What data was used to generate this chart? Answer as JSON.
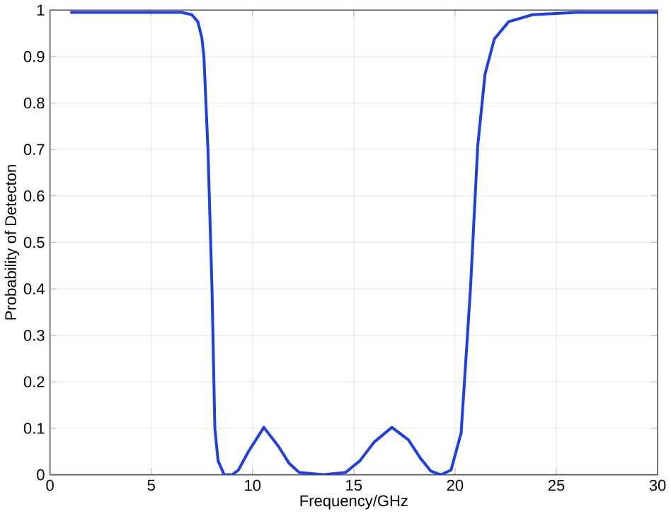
{
  "chart_data": {
    "type": "line",
    "xlabel": "Frequency/GHz",
    "ylabel": "Probability of Detecton",
    "xlim": [
      0,
      30
    ],
    "ylim": [
      0,
      1
    ],
    "xticks": [
      0,
      5,
      10,
      15,
      20,
      25,
      30
    ],
    "yticks": [
      0,
      0.1,
      0.2,
      0.3,
      0.4,
      0.5,
      0.6,
      0.7,
      0.8,
      0.9,
      1
    ],
    "grid": true,
    "series": [
      {
        "color": "#1f3fe6",
        "x": [
          1.0,
          6.5,
          7.0,
          7.3,
          7.5,
          7.6,
          7.8,
          8.0,
          8.14,
          8.3,
          8.6,
          9.0,
          9.3,
          9.8,
          10.56,
          11.3,
          11.8,
          12.3,
          13.5,
          14.6,
          15.3,
          16.0,
          16.88,
          17.7,
          18.3,
          18.8,
          19.3,
          19.8,
          20.3,
          20.76,
          21.12,
          21.48,
          21.94,
          22.65,
          23.83,
          26.0,
          30.0
        ],
        "values": [
          0.995,
          0.995,
          0.99,
          0.975,
          0.94,
          0.9,
          0.7,
          0.4,
          0.1,
          0.03,
          0.0,
          0.0,
          0.01,
          0.05,
          0.102,
          0.06,
          0.025,
          0.005,
          0.0,
          0.005,
          0.03,
          0.07,
          0.102,
          0.075,
          0.035,
          0.008,
          0.0,
          0.01,
          0.09,
          0.4,
          0.708,
          0.862,
          0.938,
          0.975,
          0.99,
          0.995,
          0.995
        ]
      }
    ]
  }
}
